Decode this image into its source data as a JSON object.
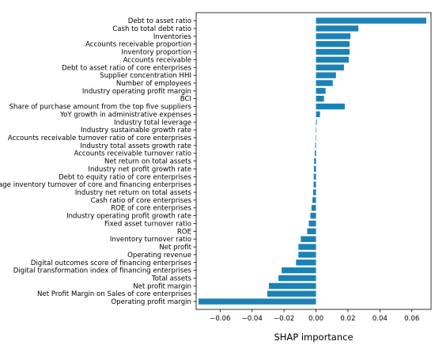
{
  "chart_data": {
    "type": "bar",
    "orientation": "horizontal",
    "title": "",
    "xlabel": "SHAP importance",
    "ylabel": "",
    "xlim": [
      -0.075,
      0.072
    ],
    "xticks": [
      -0.06,
      -0.04,
      -0.02,
      0.0,
      0.02,
      0.04,
      0.06
    ],
    "xtick_labels": [
      "−0.06",
      "−0.04",
      "−0.02",
      "0.00",
      "0.02",
      "0.04",
      "0.06"
    ],
    "bar_color": "#1b82b6",
    "grid": false,
    "categories": [
      "Debt to asset ratio",
      "Cash to total debt ratio",
      "Inventories",
      "Accounts receivable proportion",
      "Inventory proportion",
      "Accounts receivable",
      "Debt to asset ratio of core enterprises",
      "Supplier concentration HHI",
      "Number of employees",
      "Industry operating profit margin",
      "BCI",
      "Share of purchase amount from the top five suppliers",
      "YoY growth in administrative expenses",
      "Industry total leverage",
      "Industry sustainable growth rate",
      "Accounts receivable turnover ratio of core enterprises",
      "Industry total assets growth rate",
      "Accounts receivable turnover ratio",
      "Net return on total assets",
      "Industry net profit growth rate",
      "Debt to equity ratio of core enterprises",
      "Average inventory turnover of core and financing enterprises",
      "Industry net return on total assets",
      "Cash ratio of core enterprises",
      "ROE of core enterprises",
      "Industry operating profit growth rate",
      "Fixed asset turnover ratio",
      "ROE",
      "Inventory turnover ratio",
      "Net profit",
      "Operating revenue",
      "Digital outcomes score of financing enterprises",
      "Digital transformation index of financing enterprises",
      "Total assets",
      "Net profit margin",
      "Net Profit Margin on Sales of core enterprises",
      "Operating profit margin"
    ],
    "values": [
      0.069,
      0.0265,
      0.0215,
      0.021,
      0.021,
      0.0205,
      0.0175,
      0.0125,
      0.0105,
      0.006,
      0.005,
      0.018,
      0.0025,
      0.0005,
      0.0001,
      -0.0003,
      -0.0005,
      -0.0008,
      -0.0012,
      -0.0013,
      -0.0014,
      -0.0015,
      -0.0018,
      -0.0022,
      -0.0028,
      -0.0035,
      -0.0045,
      -0.0055,
      -0.0095,
      -0.011,
      -0.011,
      -0.0125,
      -0.0215,
      -0.0235,
      -0.0295,
      -0.0305,
      -0.0735
    ]
  }
}
